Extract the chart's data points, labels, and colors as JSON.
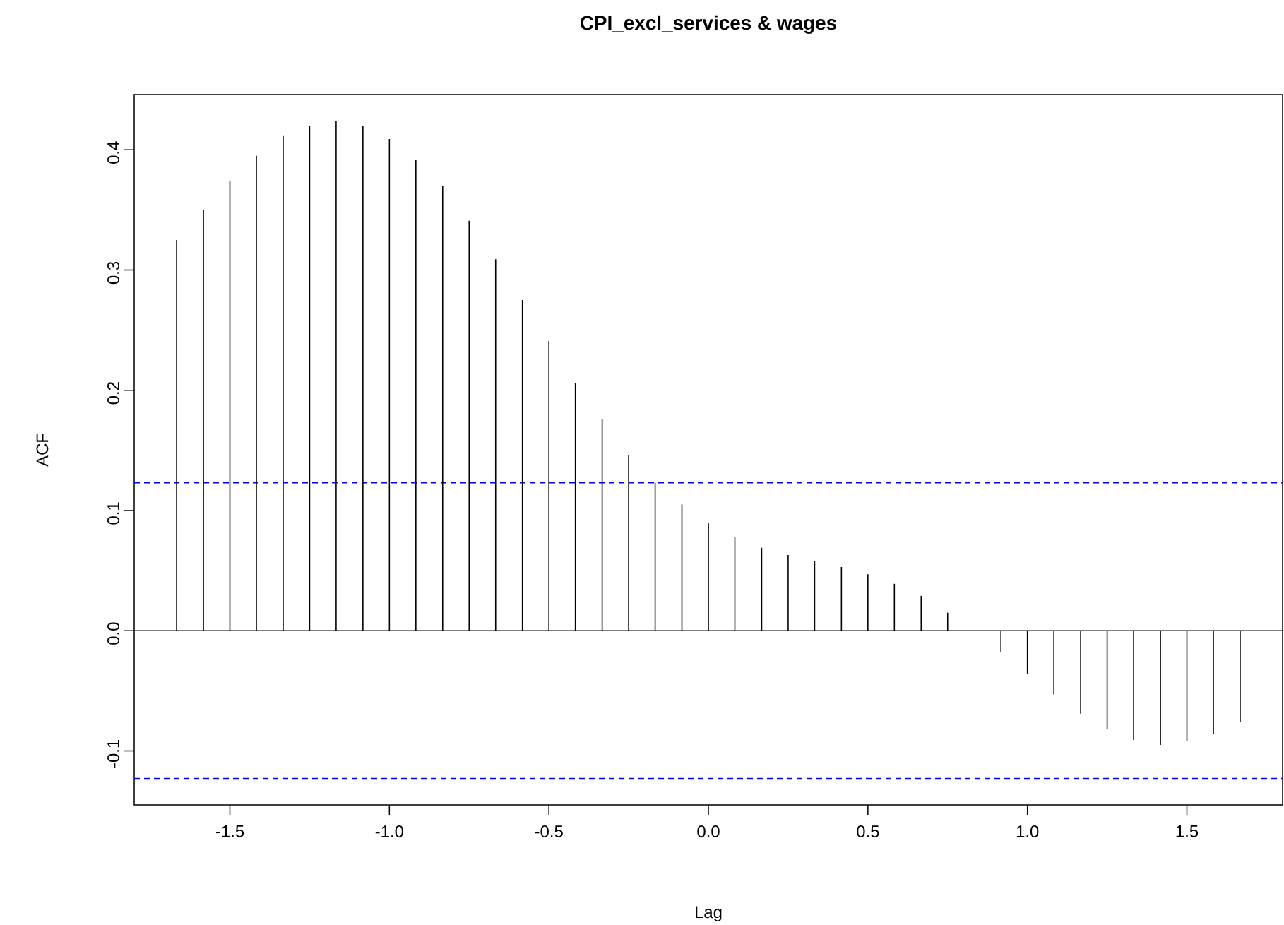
{
  "chart_data": {
    "type": "bar",
    "title": "CPI_excl_services & wages",
    "xlabel": "Lag",
    "ylabel": "ACF",
    "x": [
      -1.667,
      -1.583,
      -1.5,
      -1.417,
      -1.333,
      -1.25,
      -1.167,
      -1.083,
      -1.0,
      -0.917,
      -0.833,
      -0.75,
      -0.667,
      -0.583,
      -0.5,
      -0.417,
      -0.333,
      -0.25,
      -0.167,
      -0.083,
      0.0,
      0.083,
      0.167,
      0.25,
      0.333,
      0.417,
      0.5,
      0.583,
      0.667,
      0.75,
      0.833,
      0.917,
      1.0,
      1.083,
      1.167,
      1.25,
      1.333,
      1.417,
      1.5,
      1.583,
      1.667
    ],
    "values": [
      0.325,
      0.35,
      0.374,
      0.395,
      0.412,
      0.42,
      0.424,
      0.42,
      0.409,
      0.392,
      0.37,
      0.341,
      0.309,
      0.275,
      0.241,
      0.206,
      0.176,
      0.146,
      0.123,
      0.105,
      0.09,
      0.078,
      0.069,
      0.063,
      0.058,
      0.053,
      0.047,
      0.039,
      0.029,
      0.015,
      0.0,
      -0.018,
      -0.036,
      -0.053,
      -0.069,
      -0.082,
      -0.091,
      -0.095,
      -0.092,
      -0.086,
      -0.076
    ],
    "color": "#000000",
    "xlim": [
      -1.8,
      1.8
    ],
    "xticks": [
      {
        "value": -1.5,
        "label": "-1.5"
      },
      {
        "value": -1.0,
        "label": "-1.0"
      },
      {
        "value": -0.5,
        "label": "-0.5"
      },
      {
        "value": 0.0,
        "label": "0.0"
      },
      {
        "value": 0.5,
        "label": "0.5"
      },
      {
        "value": 1.0,
        "label": "1.0"
      },
      {
        "value": 1.5,
        "label": "1.5"
      }
    ],
    "ylim": [
      -0.145,
      0.446
    ],
    "yticks": [
      {
        "value": -0.1,
        "label": "-0.1"
      },
      {
        "value": 0.0,
        "label": "0.0"
      },
      {
        "value": 0.1,
        "label": "0.1"
      },
      {
        "value": 0.2,
        "label": "0.2"
      },
      {
        "value": 0.3,
        "label": "0.3"
      },
      {
        "value": 0.4,
        "label": "0.4"
      }
    ],
    "ref_lines": [
      {
        "axis": "y",
        "value": 0.0,
        "color": "#000000",
        "line_style": "solid"
      },
      {
        "axis": "y",
        "value": 0.123,
        "color": "#0000ff",
        "line_style": "dashed"
      },
      {
        "axis": "y",
        "value": -0.123,
        "color": "#0000ff",
        "line_style": "dashed"
      }
    ],
    "grid": false
  }
}
